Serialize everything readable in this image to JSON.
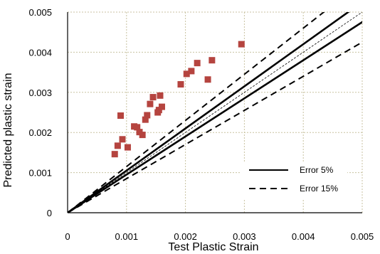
{
  "chart_data": {
    "type": "scatter",
    "xlabel": "Test Plastic Strain",
    "ylabel": "Predicted plastic strain",
    "xlim": [
      0,
      0.005
    ],
    "ylim": [
      0,
      0.005
    ],
    "x_ticks": [
      "0",
      "0.001",
      "0.002",
      "0.003",
      "0.004",
      "0.005"
    ],
    "y_ticks": [
      "0",
      "0.001",
      "0.002",
      "0.003",
      "0.004",
      "0.005"
    ],
    "grid": true,
    "legend_position": "bottom-right",
    "marker_color": "#b5443f",
    "points": [
      {
        "x": 0.0008,
        "y": 0.00146
      },
      {
        "x": 0.00085,
        "y": 0.00167
      },
      {
        "x": 0.00093,
        "y": 0.00183
      },
      {
        "x": 0.00102,
        "y": 0.00163
      },
      {
        "x": 0.0009,
        "y": 0.00242
      },
      {
        "x": 0.00113,
        "y": 0.00215
      },
      {
        "x": 0.00118,
        "y": 0.00213
      },
      {
        "x": 0.00122,
        "y": 0.00201
      },
      {
        "x": 0.00127,
        "y": 0.00194
      },
      {
        "x": 0.00132,
        "y": 0.00232
      },
      {
        "x": 0.00135,
        "y": 0.00243
      },
      {
        "x": 0.0014,
        "y": 0.00271
      },
      {
        "x": 0.00145,
        "y": 0.00288
      },
      {
        "x": 0.00153,
        "y": 0.0025
      },
      {
        "x": 0.00155,
        "y": 0.00256
      },
      {
        "x": 0.00157,
        "y": 0.00292
      },
      {
        "x": 0.0016,
        "y": 0.00264
      },
      {
        "x": 0.00192,
        "y": 0.0032
      },
      {
        "x": 0.00202,
        "y": 0.00346
      },
      {
        "x": 0.0021,
        "y": 0.00353
      },
      {
        "x": 0.0022,
        "y": 0.00373
      },
      {
        "x": 0.00238,
        "y": 0.00332
      },
      {
        "x": 0.00245,
        "y": 0.0038
      },
      {
        "x": 0.00295,
        "y": 0.0042
      }
    ],
    "lines": [
      {
        "slope": 1.0,
        "style": "thin-dashed"
      },
      {
        "slope": 1.05,
        "style": "solid",
        "legend": "Error 5%"
      },
      {
        "slope": 0.95,
        "style": "solid"
      },
      {
        "slope": 1.15,
        "style": "dashed",
        "legend": "Error 15%"
      },
      {
        "slope": 0.85,
        "style": "dashed"
      }
    ]
  }
}
